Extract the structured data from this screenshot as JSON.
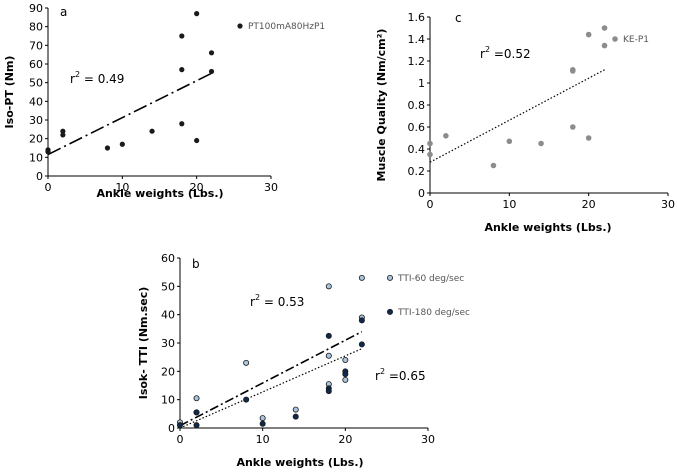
{
  "chart_data": [
    {
      "id": "a",
      "type": "scatter",
      "panel_label": "a",
      "xlabel": "Ankle weights (Lbs.)",
      "ylabel": "Iso-PT (Nm)",
      "xlim": [
        0,
        30
      ],
      "ylim": [
        0,
        90
      ],
      "xticks": [
        "0",
        "10",
        "20",
        "30"
      ],
      "yticks": [
        "0",
        "10",
        "20",
        "30",
        "40",
        "50",
        "60",
        "70",
        "80",
        "90"
      ],
      "series": [
        {
          "name": "PT100mA80HzP1",
          "color": "#1a1a1a",
          "x": [
            0,
            0,
            2,
            2,
            8,
            10,
            14,
            18,
            18,
            18,
            20,
            20,
            22,
            22
          ],
          "y": [
            13,
            14,
            22,
            24,
            15,
            17,
            24,
            28,
            57,
            75,
            19,
            87,
            66,
            56
          ]
        }
      ],
      "trendline": {
        "style": "long-dash",
        "x": [
          0,
          22
        ],
        "y": [
          11.5,
          55
        ]
      },
      "annotation": {
        "base": "r",
        "sup": "2",
        "text": " = 0.49"
      }
    },
    {
      "id": "c",
      "type": "scatter",
      "panel_label": "c",
      "xlabel": "Ankle weights (Lbs.)",
      "ylabel": "Muscle Quality (Nm/cm²)",
      "xlim": [
        0,
        30
      ],
      "ylim": [
        0,
        1.6
      ],
      "xticks": [
        "0",
        "10",
        "20",
        "30"
      ],
      "yticks": [
        "0",
        "0.2",
        "0.4",
        "0.6",
        "0.8",
        "1",
        "1.2",
        "1.4",
        "1.6"
      ],
      "series": [
        {
          "name": "KE-P1",
          "color": "#8c8c8c",
          "x": [
            0,
            0,
            2,
            8,
            10,
            14,
            18,
            18,
            18,
            20,
            20,
            22,
            22
          ],
          "y": [
            0.35,
            0.45,
            0.52,
            0.25,
            0.47,
            0.45,
            0.6,
            1.11,
            1.12,
            0.5,
            1.44,
            1.5,
            1.34
          ],
          "legend_y": 1.4
        }
      ],
      "trendline": {
        "style": "dotted",
        "x": [
          0,
          22
        ],
        "y": [
          0.28,
          1.12
        ]
      },
      "annotation": {
        "base": "r",
        "sup": "2",
        "text": " =0.52"
      }
    },
    {
      "id": "b",
      "type": "scatter",
      "panel_label": "b",
      "xlabel": "Ankle weights (Lbs.)",
      "ylabel": "Isok- TTI (Nm.sec)",
      "xlim": [
        0,
        30
      ],
      "ylim": [
        0,
        60
      ],
      "xticks": [
        "0",
        "10",
        "20",
        "30"
      ],
      "yticks": [
        "0",
        "10",
        "20",
        "30",
        "40",
        "50",
        "60"
      ],
      "series": [
        {
          "name": "TTI-60 deg/sec",
          "color": "#a9c4dc",
          "x": [
            0,
            2,
            2,
            8,
            10,
            14,
            18,
            18,
            18,
            20,
            20,
            22,
            22
          ],
          "y": [
            2,
            10.5,
            5.5,
            23,
            3.5,
            6.5,
            50,
            25.5,
            15.5,
            24,
            17,
            53,
            39
          ],
          "legend_y": 53
        },
        {
          "name": "TTI-180 deg/sec",
          "color": "#0d2a4d",
          "x": [
            0,
            2,
            2,
            8,
            10,
            14,
            18,
            18,
            18,
            20,
            20,
            22,
            22
          ],
          "y": [
            1,
            5.5,
            1,
            10,
            1.5,
            4,
            32.5,
            14,
            13,
            20,
            19,
            38,
            29.5
          ],
          "legend_y": 41
        }
      ],
      "trendlines": [
        {
          "series": "TTI-60 deg/sec",
          "style": "dash-dot",
          "x": [
            0,
            22
          ],
          "y": [
            0.8,
            34
          ]
        },
        {
          "series": "TTI-180 deg/sec",
          "style": "dotted",
          "x": [
            0,
            22
          ],
          "y": [
            0,
            28
          ]
        }
      ],
      "annotations": [
        {
          "base": "r",
          "sup": "2",
          "text": " = 0.53"
        },
        {
          "base": "r",
          "sup": "2",
          "text": " =0.65"
        }
      ]
    }
  ]
}
